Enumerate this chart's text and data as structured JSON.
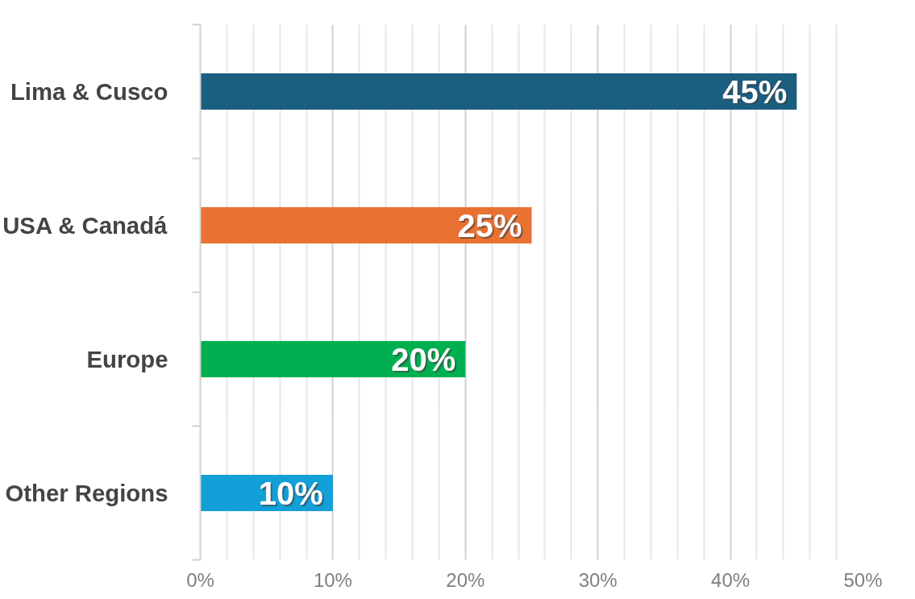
{
  "chart_data": {
    "type": "bar",
    "orientation": "horizontal",
    "categories": [
      "Lima & Cusco",
      "USA & Canadá",
      "Europe",
      "Other Regions"
    ],
    "values": [
      45,
      25,
      20,
      10
    ],
    "colors": [
      "#1a5e80",
      "#e97132",
      "#00b050",
      "#139fd8"
    ],
    "xlim": [
      0,
      50
    ],
    "xticks": [
      {
        "value": 0,
        "label": "0%"
      },
      {
        "value": 2,
        "label": null
      },
      {
        "value": 4,
        "label": null
      },
      {
        "value": 6,
        "label": null
      },
      {
        "value": 8,
        "label": null
      },
      {
        "value": 10,
        "label": "10%"
      },
      {
        "value": 12,
        "label": null
      },
      {
        "value": 14,
        "label": null
      },
      {
        "value": 16,
        "label": null
      },
      {
        "value": 18,
        "label": null
      },
      {
        "value": 20,
        "label": "20%"
      },
      {
        "value": 22,
        "label": null
      },
      {
        "value": 24,
        "label": null
      },
      {
        "value": 26,
        "label": null
      },
      {
        "value": 28,
        "label": null
      },
      {
        "value": 30,
        "label": "30%"
      },
      {
        "value": 32,
        "label": null
      },
      {
        "value": 34,
        "label": null
      },
      {
        "value": 36,
        "label": null
      },
      {
        "value": 38,
        "label": null
      },
      {
        "value": 40,
        "label": "40%"
      },
      {
        "value": 42,
        "label": null
      },
      {
        "value": 44,
        "label": null
      },
      {
        "value": 46,
        "label": null
      },
      {
        "value": 48,
        "label": null
      },
      {
        "value": 50,
        "label": "50%"
      }
    ],
    "value_labels": [
      "45%",
      "25%",
      "20%",
      "10%"
    ],
    "grid": "x"
  }
}
